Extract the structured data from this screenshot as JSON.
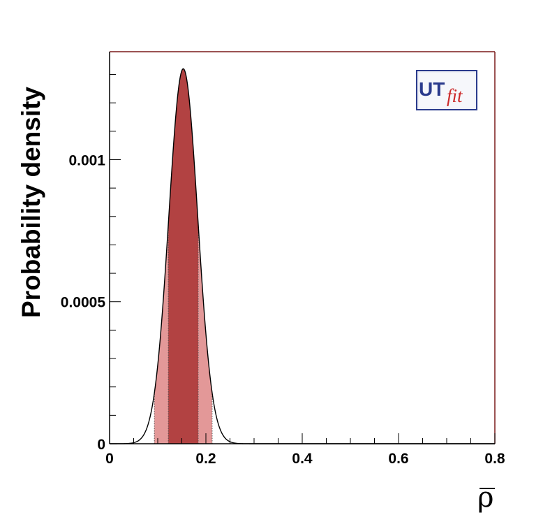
{
  "chart_data": {
    "type": "area",
    "xlabel": "ρ",
    "ylabel": "Probability density",
    "xlim": [
      0,
      0.8
    ],
    "ylim": [
      0,
      0.00138
    ],
    "x_ticks": [
      {
        "value": 0,
        "label": "0"
      },
      {
        "value": 0.2,
        "label": "0.2"
      },
      {
        "value": 0.4,
        "label": "0.4"
      },
      {
        "value": 0.6,
        "label": "0.6"
      },
      {
        "value": 0.8,
        "label": "0.8"
      }
    ],
    "y_ticks": [
      {
        "value": 0,
        "label": "0"
      },
      {
        "value": 0.0005,
        "label": "0.0005"
      },
      {
        "value": 0.001,
        "label": "0.001"
      }
    ],
    "distribution": {
      "peak_x": 0.153,
      "peak_y": 0.00132,
      "sigma_left": 0.03,
      "sigma_right": 0.03
    },
    "intervals": {
      "range_68": [
        0.122,
        0.184
      ],
      "range_95": [
        0.093,
        0.213
      ]
    },
    "colors": {
      "band_68": "#b24242",
      "band_95": "#e39898",
      "curve": "#000000",
      "frame_top_right": "#7a1a1a",
      "frame_left_bottom": "#000000"
    },
    "logo": {
      "part1": "UT",
      "part2": "fit"
    }
  }
}
